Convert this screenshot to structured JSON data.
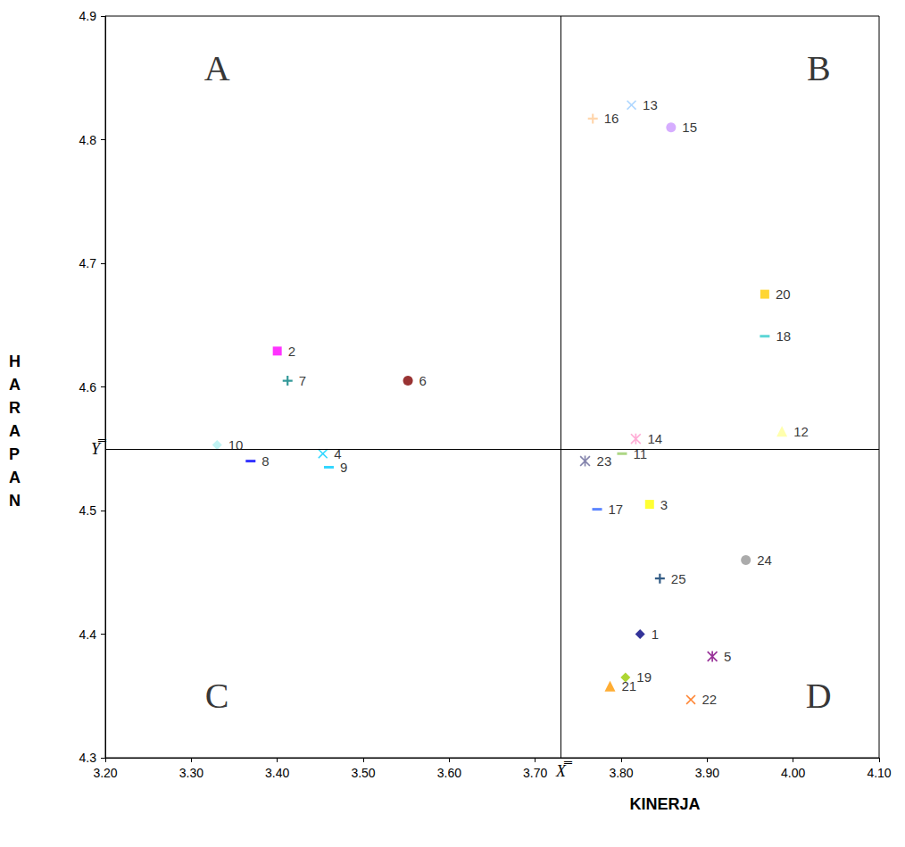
{
  "chart_data": {
    "type": "scatter",
    "x_label": "KINERJA",
    "y_label": "HARAPAN",
    "point_labels": [
      "1",
      "2",
      "3",
      "4",
      "5",
      "6",
      "7",
      "8",
      "9",
      "10",
      "11",
      "12",
      "13",
      "14",
      "15",
      "16",
      "17",
      "18",
      "19",
      "20",
      "21",
      "22",
      "23",
      "24",
      "25"
    ],
    "x": [
      3.822,
      3.4,
      3.833,
      3.453,
      3.906,
      3.552,
      3.412,
      3.369,
      3.46,
      3.33,
      3.801,
      3.987,
      3.812,
      3.817,
      3.858,
      3.767,
      3.772,
      3.967,
      3.805,
      3.967,
      3.787,
      3.881,
      3.758,
      3.945,
      3.845
    ],
    "values": [
      4.4,
      4.629,
      4.505,
      4.546,
      4.382,
      4.605,
      4.605,
      4.54,
      4.535,
      4.553,
      4.546,
      4.564,
      4.828,
      4.558,
      4.81,
      4.817,
      4.501,
      4.641,
      4.365,
      4.675,
      4.358,
      4.347,
      4.54,
      4.46,
      4.445
    ],
    "colors": [
      "#000080",
      "#ff00ff",
      "#ffff00",
      "#00ccff",
      "#800080",
      "#800000",
      "#008080",
      "#0000ff",
      "#00ccff",
      "#b0f0f0",
      "#99cc66",
      "#ffff99",
      "#99ccff",
      "#ff99cc",
      "#cc99ff",
      "#ffcc99",
      "#3366ff",
      "#33cccc",
      "#99cc00",
      "#ffcc00",
      "#ff9900",
      "#ff6600",
      "#666699",
      "#969696",
      "#003366"
    ],
    "markers": [
      "diamond",
      "square",
      "square",
      "x",
      "asterisk",
      "circle",
      "plus",
      "dash",
      "dash",
      "diamond",
      "dash",
      "triangle",
      "x",
      "asterisk",
      "circle",
      "plus",
      "dash",
      "dash",
      "diamond",
      "square",
      "triangle",
      "x",
      "asterisk",
      "circle",
      "plus"
    ],
    "xlim": [
      3.2,
      4.1
    ],
    "ylim": [
      4.3,
      4.9
    ],
    "xticks": [
      {
        "value": 3.2,
        "label": "3.20"
      },
      {
        "value": 3.3,
        "label": "3.30"
      },
      {
        "value": 3.4,
        "label": "3.40"
      },
      {
        "value": 3.5,
        "label": "3.50"
      },
      {
        "value": 3.6,
        "label": "3.60"
      },
      {
        "value": 3.7,
        "label": "3.70"
      },
      {
        "value": 3.8,
        "label": "3.80"
      },
      {
        "value": 3.9,
        "label": "3.90"
      },
      {
        "value": 4.0,
        "label": "4.00"
      },
      {
        "value": 4.1,
        "label": "4.10"
      }
    ],
    "yticks": [
      4.3,
      4.4,
      4.5,
      4.6,
      4.7,
      4.8,
      4.9
    ],
    "x_mean": 3.73,
    "x_mean_label": "X̿",
    "y_mean": 4.55,
    "y_mean_label": "Y̿",
    "quadrant_labels": [
      "A",
      "B",
      "C",
      "D"
    ],
    "grid": false
  }
}
